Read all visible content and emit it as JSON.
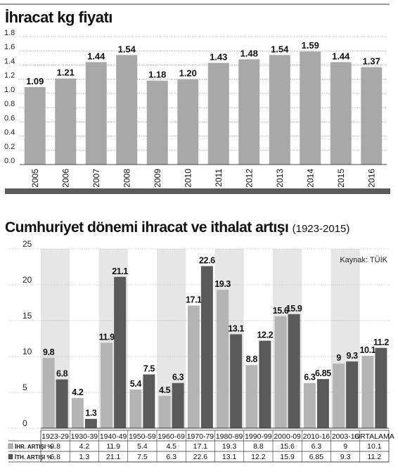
{
  "chart_data": [
    {
      "type": "bar",
      "title": "İhracat kg fiyatı",
      "categories": [
        "2005",
        "2006",
        "2007",
        "2008",
        "2009",
        "2010",
        "2011",
        "2012",
        "2013",
        "2014",
        "2015",
        "2016"
      ],
      "values": [
        1.09,
        1.21,
        1.44,
        1.54,
        1.18,
        1.2,
        1.43,
        1.48,
        1.54,
        1.59,
        1.44,
        1.37
      ],
      "value_labels": [
        "1.09",
        "1.21",
        "1.44",
        "1.54",
        "1.18",
        "1.20",
        "1.43",
        "1.48",
        "1.54",
        "1.59",
        "1.44",
        "1.37"
      ],
      "y_ticks": [
        "1.8",
        "1.6",
        "1.4",
        "1.2",
        "1.0",
        "0.8",
        "0.6",
        "0.4",
        "0.2",
        "0.0"
      ],
      "ylim": [
        0,
        1.8
      ],
      "grid": true,
      "colors": {
        "bar": "#a8a8a8",
        "bottom_bar": "#5b5b5b",
        "grid": "#666666"
      }
    },
    {
      "type": "bar",
      "title": "Cumhuriyet dönemi ihracat ve ithalat artışı",
      "period": "(1923-2015)",
      "source": "Kaynak: TÜİK",
      "categories": [
        "1923-29",
        "1930-39",
        "1940-49",
        "1950-59",
        "1960-69",
        "1970-79",
        "1980-89",
        "1990-99",
        "2000-09",
        "2010-16",
        "2003-16",
        "ORTALAMA"
      ],
      "series": [
        {
          "name": "İHR. ARTIŞI %",
          "values": [
            9.8,
            4.2,
            11.9,
            5.4,
            4.5,
            17.1,
            19.3,
            8.8,
            15.6,
            6.3,
            9,
            10.1
          ],
          "labels": [
            "9.8",
            "4.2",
            "11.9",
            "5.4",
            "4.5",
            "17.1",
            "19.3",
            "8.8",
            "15.6",
            "6.3",
            "9",
            "10.1"
          ],
          "color": "#b4b4b4"
        },
        {
          "name": "İTH. ARTIŞI %",
          "values": [
            6.8,
            1.3,
            21.1,
            7.5,
            6.3,
            22.6,
            13.1,
            12.2,
            15.9,
            6.85,
            9.3,
            11.2
          ],
          "labels": [
            "6.8",
            "1.3",
            "21.1",
            "7.5",
            "6.3",
            "22.6",
            "13.1",
            "12.2",
            "15.9",
            "6.85",
            "9.3",
            "11.2"
          ],
          "color": "#5a5a5a"
        }
      ],
      "y_ticks": [
        "25",
        "20",
        "15",
        "10",
        "5",
        "0"
      ],
      "ylim": [
        0,
        25
      ],
      "grid": true,
      "colors": {
        "band": "#e6e6e6",
        "grid": "#888888"
      }
    }
  ]
}
